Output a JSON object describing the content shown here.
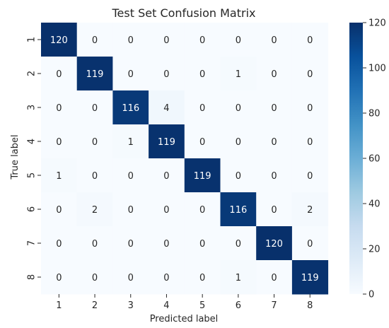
{
  "chart_data": {
    "type": "heatmap",
    "title": "Test Set Confusion Matrix",
    "xlabel": "Predicted label",
    "ylabel": "True label",
    "x_categories": [
      "1",
      "2",
      "3",
      "4",
      "5",
      "6",
      "7",
      "8"
    ],
    "y_categories": [
      "1",
      "2",
      "3",
      "4",
      "5",
      "6",
      "7",
      "8"
    ],
    "values": [
      [
        120,
        0,
        0,
        0,
        0,
        0,
        0,
        0
      ],
      [
        0,
        119,
        0,
        0,
        0,
        1,
        0,
        0
      ],
      [
        0,
        0,
        116,
        4,
        0,
        0,
        0,
        0
      ],
      [
        0,
        0,
        1,
        119,
        0,
        0,
        0,
        0
      ],
      [
        1,
        0,
        0,
        0,
        119,
        0,
        0,
        0
      ],
      [
        0,
        2,
        0,
        0,
        0,
        116,
        0,
        2
      ],
      [
        0,
        0,
        0,
        0,
        0,
        0,
        120,
        0
      ],
      [
        0,
        0,
        0,
        0,
        0,
        1,
        0,
        119
      ]
    ],
    "colorbar": {
      "min": 0,
      "max": 120,
      "ticks": [
        "0",
        "20",
        "40",
        "60",
        "80",
        "100",
        "120"
      ]
    },
    "colormap": "Blues",
    "annot": true
  }
}
